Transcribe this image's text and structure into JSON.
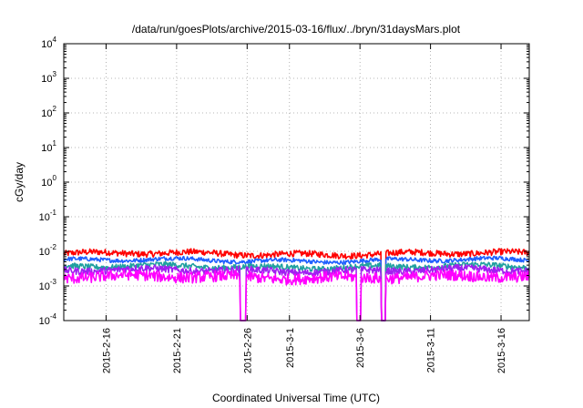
{
  "chart_data": {
    "type": "line",
    "title": "/data/run/goesPlots/archive/2015-03-16/flux/../bryn/31daysMars.plot",
    "xlabel": "Coordinated Universal Time (UTC)",
    "ylabel": "cGy/day",
    "yscale": "log",
    "ylim": [
      0.0001,
      10000
    ],
    "xlim": [
      "2015-02-13",
      "2015-03-18"
    ],
    "grid": true,
    "legend": "none",
    "y_ticks": [
      {
        "base": "10",
        "exp": "-4",
        "value": 0.0001
      },
      {
        "base": "10",
        "exp": "-3",
        "value": 0.001
      },
      {
        "base": "10",
        "exp": "-2",
        "value": 0.01
      },
      {
        "base": "10",
        "exp": "-1",
        "value": 0.1
      },
      {
        "base": "10",
        "exp": "0",
        "value": 1
      },
      {
        "base": "10",
        "exp": "1",
        "value": 10
      },
      {
        "base": "10",
        "exp": "2",
        "value": 100
      },
      {
        "base": "10",
        "exp": "3",
        "value": 1000
      },
      {
        "base": "10",
        "exp": "4",
        "value": 10000
      }
    ],
    "x_ticks": [
      {
        "label": "2015-2-16",
        "date": "2015-02-16"
      },
      {
        "label": "2015-2-21",
        "date": "2015-02-21"
      },
      {
        "label": "2015-2-26",
        "date": "2015-02-26"
      },
      {
        "label": "2015-3-1",
        "date": "2015-03-01"
      },
      {
        "label": "2015-3-6",
        "date": "2015-03-06"
      },
      {
        "label": "2015-3-11",
        "date": "2015-03-11"
      },
      {
        "label": "2015-3-16",
        "date": "2015-03-16"
      }
    ],
    "series": [
      {
        "color": "#ff0000",
        "base": 0.0085,
        "noise": 0.09
      },
      {
        "color": "#2060ff",
        "base": 0.0055,
        "noise": 0.06
      },
      {
        "color": "#20a0a0",
        "base": 0.0036,
        "noise": 0.08
      },
      {
        "color": "#a020f0",
        "base": 0.0028,
        "noise": 0.1
      },
      {
        "color": "#ff00ff",
        "base": 0.0018,
        "noise": 0.16
      }
    ],
    "dropouts": [
      {
        "start": "2015-02-25T12:00",
        "end": "2015-02-25T22:00",
        "series": [
          3,
          4
        ]
      },
      {
        "start": "2015-03-05T18:00",
        "end": "2015-03-06T02:00",
        "series": [
          3,
          4
        ]
      },
      {
        "start": "2015-03-07T12:00",
        "end": "2015-03-07T20:00",
        "series": [
          0,
          1,
          2,
          3,
          4
        ]
      }
    ]
  }
}
